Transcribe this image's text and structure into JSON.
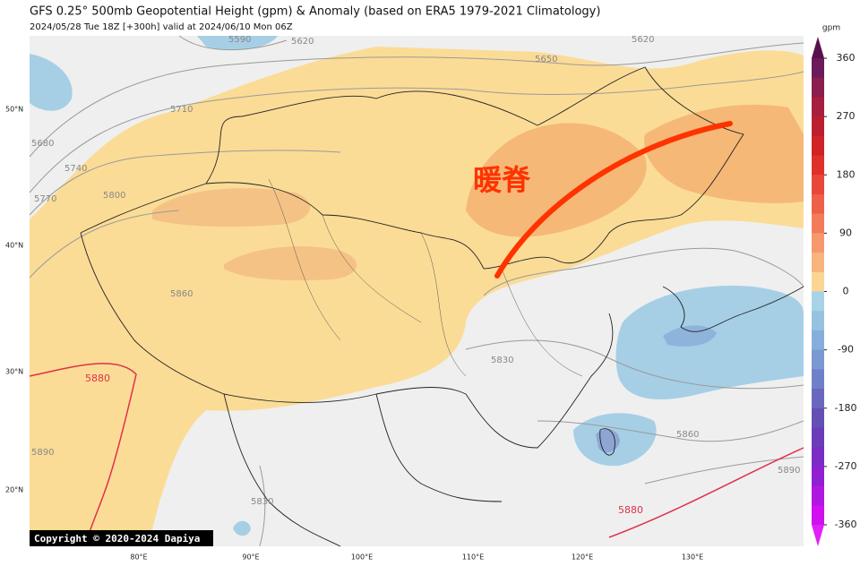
{
  "header": {
    "title": "GFS 0.25° 500mb Geopotential Height (gpm) & Anomaly (based on ERA5 1979-2021 Climatology)",
    "subtitle": "2024/05/28 Tue 18Z [+300h] valid at 2024/06/10 Mon 06Z"
  },
  "annotation": "暖脊",
  "copyright": "Copyright © 2020-2024 Dapiya",
  "latitude_labels": [
    "50°N",
    "40°N",
    "30°N",
    "20°N"
  ],
  "longitude_labels": [
    "80°E",
    "90°E",
    "100°E",
    "110°E",
    "120°E",
    "130°E"
  ],
  "contour_labels": [
    5590,
    5620,
    5650,
    5620,
    5710,
    5680,
    5740,
    5770,
    5800,
    5860,
    5830,
    5880,
    5890,
    5860,
    5830,
    5880,
    5890
  ],
  "colorbar": {
    "label": "gpm",
    "range": [
      -360,
      360
    ],
    "ticks": [
      360,
      270,
      180,
      90,
      0,
      -90,
      -180,
      -270,
      -360
    ],
    "colors": [
      "#6b1a5a",
      "#8a1e4e",
      "#a61f3f",
      "#bb1f2f",
      "#cf2326",
      "#e0302a",
      "#e8473a",
      "#ee6048",
      "#f27c5a",
      "#f5996c",
      "#f7b47c",
      "#fbd594",
      "#a6d3e8",
      "#96c2e2",
      "#86aedb",
      "#7a98d2",
      "#7080c8",
      "#6a68be",
      "#6450b5",
      "#6a3cb8",
      "#7a2cc4",
      "#9020d2",
      "#b018e0",
      "#d010ee"
    ],
    "over_color": "#5a1048",
    "under_color": "#e020f8"
  }
}
